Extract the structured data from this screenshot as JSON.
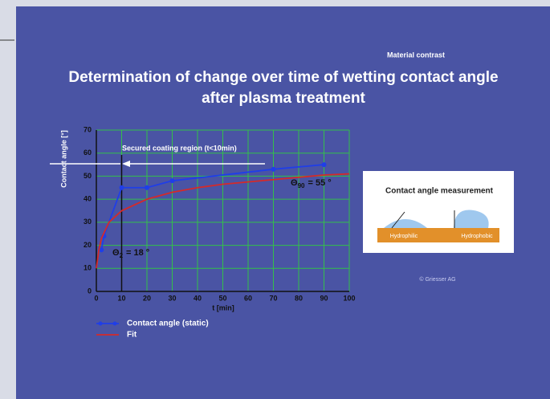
{
  "slide": {
    "tag": "Material contrast",
    "title_lines": [
      "Determination of change over time of wetting contact angle",
      "after plasma treatment"
    ],
    "copyright": "© Griesser AG"
  },
  "panel": {
    "title": "Contact angle measurement",
    "left_label": "Hydrophilic",
    "right_label": "Hydrophobic"
  },
  "chart_data": {
    "type": "line",
    "y_label": "Contact angle [°]",
    "x_label": "t [min]",
    "xlim": [
      0,
      100
    ],
    "xticks": [
      0,
      10,
      20,
      30,
      40,
      50,
      60,
      70,
      80,
      90,
      100
    ],
    "ylim": [
      0,
      70
    ],
    "yticks": [
      0,
      10,
      20,
      30,
      40,
      50,
      60,
      70
    ],
    "grid": true,
    "grid_color": "#33c04a",
    "series": [
      {
        "name": "Contact angle (static)",
        "color": "#1f3ee8",
        "markers": true,
        "x": [
          2,
          3,
          10,
          20,
          30,
          70,
          90
        ],
        "values": [
          18,
          24,
          45,
          45,
          48,
          53,
          55
        ]
      },
      {
        "name": "Fit",
        "color": "#d42a2a",
        "markers": false,
        "x": [
          0,
          1,
          2,
          5,
          10,
          20,
          30,
          40,
          50,
          60,
          70,
          80,
          90,
          100
        ],
        "values": [
          10,
          18,
          23,
          30,
          35,
          40,
          43,
          45,
          46.5,
          47.5,
          48.5,
          49.5,
          50.5,
          51
        ]
      }
    ],
    "annotations": [
      {
        "text": "Secured coating region (t<10min)"
      },
      {
        "symbol": "Θ",
        "subscript": "2",
        "suffix": "= 18 °"
      },
      {
        "symbol": "Θ",
        "subscript": "90",
        "suffix": "= 55 °"
      }
    ]
  }
}
